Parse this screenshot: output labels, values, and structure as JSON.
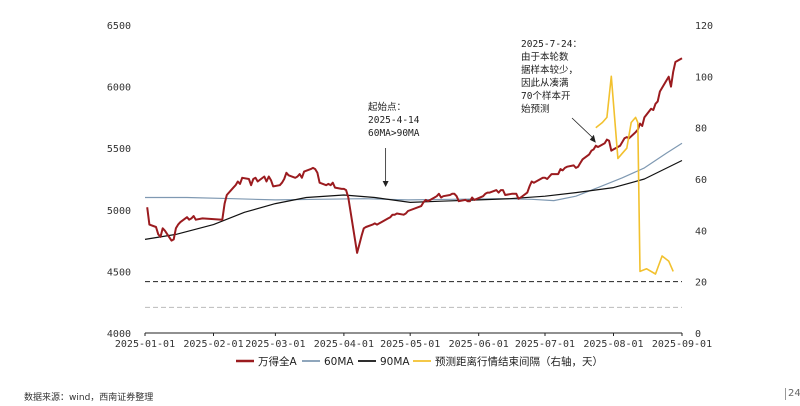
{
  "chart_data": {
    "type": "line",
    "left_axis": {
      "ylim": [
        4000,
        6500
      ],
      "ticks": [
        "4000",
        "4500",
        "5000",
        "5500",
        "6000",
        "6500"
      ]
    },
    "right_axis": {
      "ylim": [
        0,
        120
      ],
      "ticks": [
        "0",
        "20",
        "40",
        "60",
        "80",
        "100",
        "120"
      ]
    },
    "x_axis": {
      "range": [
        "2025-01-01",
        "2025-09-01"
      ],
      "ticks": [
        "2025-01-01",
        "2025-02-01",
        "2025-03-01",
        "2025-04-01",
        "2025-05-01",
        "2025-06-01",
        "2025-07-01",
        "2025-08-01",
        "2025-09-01"
      ]
    },
    "series": [
      {
        "name": "万得全A",
        "axis": "left",
        "color": "#9b1b1f",
        "points": [
          [
            "2025-01-02",
            5020
          ],
          [
            "2025-01-03",
            4880
          ],
          [
            "2025-01-06",
            4860
          ],
          [
            "2025-01-07",
            4800
          ],
          [
            "2025-01-08",
            4780
          ],
          [
            "2025-01-09",
            4850
          ],
          [
            "2025-01-10",
            4830
          ],
          [
            "2025-01-13",
            4750
          ],
          [
            "2025-01-14",
            4760
          ],
          [
            "2025-01-15",
            4850
          ],
          [
            "2025-01-16",
            4880
          ],
          [
            "2025-01-17",
            4900
          ],
          [
            "2025-01-20",
            4940
          ],
          [
            "2025-01-21",
            4920
          ],
          [
            "2025-01-22",
            4930
          ],
          [
            "2025-01-23",
            4950
          ],
          [
            "2025-01-24",
            4920
          ],
          [
            "2025-01-27",
            4930
          ],
          [
            "2025-02-05",
            4920
          ],
          [
            "2025-02-06",
            5050
          ],
          [
            "2025-02-07",
            5120
          ],
          [
            "2025-02-10",
            5180
          ],
          [
            "2025-02-11",
            5200
          ],
          [
            "2025-02-12",
            5230
          ],
          [
            "2025-02-13",
            5210
          ],
          [
            "2025-02-14",
            5260
          ],
          [
            "2025-02-17",
            5250
          ],
          [
            "2025-02-18",
            5200
          ],
          [
            "2025-02-19",
            5250
          ],
          [
            "2025-02-20",
            5260
          ],
          [
            "2025-02-21",
            5230
          ],
          [
            "2025-02-24",
            5270
          ],
          [
            "2025-02-25",
            5230
          ],
          [
            "2025-02-26",
            5270
          ],
          [
            "2025-02-27",
            5240
          ],
          [
            "2025-02-28",
            5190
          ],
          [
            "2025-03-03",
            5200
          ],
          [
            "2025-03-04",
            5220
          ],
          [
            "2025-03-05",
            5250
          ],
          [
            "2025-03-06",
            5300
          ],
          [
            "2025-03-07",
            5280
          ],
          [
            "2025-03-10",
            5260
          ],
          [
            "2025-03-11",
            5270
          ],
          [
            "2025-03-12",
            5290
          ],
          [
            "2025-03-13",
            5260
          ],
          [
            "2025-03-14",
            5310
          ],
          [
            "2025-03-17",
            5330
          ],
          [
            "2025-03-18",
            5340
          ],
          [
            "2025-03-19",
            5330
          ],
          [
            "2025-03-20",
            5300
          ],
          [
            "2025-03-21",
            5220
          ],
          [
            "2025-03-24",
            5200
          ],
          [
            "2025-03-25",
            5210
          ],
          [
            "2025-03-26",
            5200
          ],
          [
            "2025-03-27",
            5220
          ],
          [
            "2025-03-28",
            5180
          ],
          [
            "2025-03-31",
            5170
          ],
          [
            "2025-04-01",
            5170
          ],
          [
            "2025-04-02",
            5160
          ],
          [
            "2025-04-03",
            5100
          ],
          [
            "2025-04-07",
            4650
          ],
          [
            "2025-04-08",
            4720
          ],
          [
            "2025-04-09",
            4790
          ],
          [
            "2025-04-10",
            4850
          ],
          [
            "2025-04-11",
            4860
          ],
          [
            "2025-04-14",
            4880
          ],
          [
            "2025-04-15",
            4890
          ],
          [
            "2025-04-16",
            4880
          ],
          [
            "2025-04-17",
            4890
          ],
          [
            "2025-04-18",
            4900
          ],
          [
            "2025-04-21",
            4930
          ],
          [
            "2025-04-22",
            4940
          ],
          [
            "2025-04-23",
            4960
          ],
          [
            "2025-04-24",
            4960
          ],
          [
            "2025-04-25",
            4970
          ],
          [
            "2025-04-28",
            4960
          ],
          [
            "2025-04-29",
            4970
          ],
          [
            "2025-04-30",
            4990
          ],
          [
            "2025-05-06",
            5030
          ],
          [
            "2025-05-07",
            5060
          ],
          [
            "2025-05-08",
            5080
          ],
          [
            "2025-05-09",
            5070
          ],
          [
            "2025-05-12",
            5100
          ],
          [
            "2025-05-13",
            5110
          ],
          [
            "2025-05-14",
            5130
          ],
          [
            "2025-05-15",
            5100
          ],
          [
            "2025-05-16",
            5110
          ],
          [
            "2025-05-19",
            5120
          ],
          [
            "2025-05-20",
            5130
          ],
          [
            "2025-05-21",
            5130
          ],
          [
            "2025-05-22",
            5110
          ],
          [
            "2025-05-23",
            5070
          ],
          [
            "2025-05-26",
            5080
          ],
          [
            "2025-05-27",
            5070
          ],
          [
            "2025-05-28",
            5070
          ],
          [
            "2025-05-29",
            5100
          ],
          [
            "2025-05-30",
            5080
          ],
          [
            "2025-06-03",
            5110
          ],
          [
            "2025-06-04",
            5130
          ],
          [
            "2025-06-05",
            5140
          ],
          [
            "2025-06-06",
            5140
          ],
          [
            "2025-06-09",
            5160
          ],
          [
            "2025-06-10",
            5140
          ],
          [
            "2025-06-11",
            5160
          ],
          [
            "2025-06-12",
            5160
          ],
          [
            "2025-06-13",
            5120
          ],
          [
            "2025-06-16",
            5130
          ],
          [
            "2025-06-17",
            5130
          ],
          [
            "2025-06-18",
            5130
          ],
          [
            "2025-06-19",
            5090
          ],
          [
            "2025-06-20",
            5100
          ],
          [
            "2025-06-23",
            5140
          ],
          [
            "2025-06-24",
            5190
          ],
          [
            "2025-06-25",
            5230
          ],
          [
            "2025-06-26",
            5220
          ],
          [
            "2025-06-27",
            5230
          ],
          [
            "2025-06-30",
            5260
          ],
          [
            "2025-07-01",
            5260
          ],
          [
            "2025-07-02",
            5250
          ],
          [
            "2025-07-03",
            5270
          ],
          [
            "2025-07-04",
            5290
          ],
          [
            "2025-07-07",
            5290
          ],
          [
            "2025-07-08",
            5330
          ],
          [
            "2025-07-09",
            5320
          ],
          [
            "2025-07-10",
            5340
          ],
          [
            "2025-07-11",
            5350
          ],
          [
            "2025-07-14",
            5360
          ],
          [
            "2025-07-15",
            5340
          ],
          [
            "2025-07-16",
            5350
          ],
          [
            "2025-07-17",
            5380
          ],
          [
            "2025-07-18",
            5410
          ],
          [
            "2025-07-21",
            5450
          ],
          [
            "2025-07-22",
            5480
          ],
          [
            "2025-07-23",
            5490
          ],
          [
            "2025-07-24",
            5520
          ],
          [
            "2025-07-25",
            5510
          ],
          [
            "2025-07-28",
            5540
          ],
          [
            "2025-07-29",
            5570
          ],
          [
            "2025-07-30",
            5560
          ],
          [
            "2025-07-31",
            5480
          ],
          [
            "2025-08-01",
            5490
          ],
          [
            "2025-08-04",
            5520
          ],
          [
            "2025-08-05",
            5550
          ],
          [
            "2025-08-06",
            5580
          ],
          [
            "2025-08-07",
            5590
          ],
          [
            "2025-08-08",
            5580
          ],
          [
            "2025-08-11",
            5630
          ],
          [
            "2025-08-12",
            5650
          ],
          [
            "2025-08-13",
            5700
          ],
          [
            "2025-08-14",
            5680
          ],
          [
            "2025-08-15",
            5750
          ],
          [
            "2025-08-18",
            5820
          ],
          [
            "2025-08-19",
            5810
          ],
          [
            "2025-08-20",
            5860
          ],
          [
            "2025-08-21",
            5880
          ],
          [
            "2025-08-22",
            5960
          ],
          [
            "2025-08-25",
            6050
          ],
          [
            "2025-08-26",
            6080
          ],
          [
            "2025-08-27",
            6000
          ],
          [
            "2025-08-28",
            6120
          ],
          [
            "2025-08-29",
            6200
          ],
          [
            "2025-09-01",
            6230
          ]
        ]
      },
      {
        "name": "60MA",
        "axis": "left",
        "color": "#7f99b2",
        "points": [
          [
            "2025-01-01",
            5100
          ],
          [
            "2025-01-20",
            5100
          ],
          [
            "2025-02-10",
            5090
          ],
          [
            "2025-03-01",
            5080
          ],
          [
            "2025-03-20",
            5085
          ],
          [
            "2025-04-10",
            5090
          ],
          [
            "2025-04-30",
            5080
          ],
          [
            "2025-05-20",
            5085
          ],
          [
            "2025-06-10",
            5090
          ],
          [
            "2025-06-25",
            5085
          ],
          [
            "2025-07-05",
            5075
          ],
          [
            "2025-07-15",
            5110
          ],
          [
            "2025-07-25",
            5180
          ],
          [
            "2025-08-05",
            5260
          ],
          [
            "2025-08-15",
            5340
          ],
          [
            "2025-08-25",
            5460
          ],
          [
            "2025-09-01",
            5540
          ]
        ]
      },
      {
        "name": "90MA",
        "axis": "left",
        "color": "#111111",
        "points": [
          [
            "2025-01-01",
            4760
          ],
          [
            "2025-01-15",
            4800
          ],
          [
            "2025-02-01",
            4880
          ],
          [
            "2025-02-15",
            4980
          ],
          [
            "2025-03-01",
            5050
          ],
          [
            "2025-03-15",
            5100
          ],
          [
            "2025-04-01",
            5120
          ],
          [
            "2025-04-15",
            5100
          ],
          [
            "2025-05-01",
            5060
          ],
          [
            "2025-05-15",
            5070
          ],
          [
            "2025-06-01",
            5080
          ],
          [
            "2025-06-15",
            5090
          ],
          [
            "2025-07-01",
            5110
          ],
          [
            "2025-07-15",
            5140
          ],
          [
            "2025-08-01",
            5180
          ],
          [
            "2025-08-15",
            5250
          ],
          [
            "2025-09-01",
            5400
          ]
        ]
      },
      {
        "name": "预测距离行情结束间隔（右轴，天）",
        "axis": "right",
        "color": "#f2c12e",
        "points": [
          [
            "2025-07-24",
            80
          ],
          [
            "2025-07-27",
            82
          ],
          [
            "2025-07-29",
            84
          ],
          [
            "2025-07-31",
            100
          ],
          [
            "2025-08-03",
            68
          ],
          [
            "2025-08-05",
            70
          ],
          [
            "2025-08-07",
            72
          ],
          [
            "2025-08-09",
            82
          ],
          [
            "2025-08-11",
            84
          ],
          [
            "2025-08-12",
            82
          ],
          [
            "2025-08-13",
            24
          ],
          [
            "2025-08-16",
            25
          ],
          [
            "2025-08-20",
            23
          ],
          [
            "2025-08-23",
            30
          ],
          [
            "2025-08-26",
            28
          ],
          [
            "2025-08-28",
            24
          ]
        ]
      }
    ],
    "reference_lines": [
      {
        "axis": "right",
        "value": 20,
        "style": "dashed",
        "color": "#222222"
      },
      {
        "axis": "right",
        "value": 10,
        "style": "dashed",
        "color": "#bbbbbb"
      }
    ],
    "annotations": [
      {
        "lines": [
          "起始点：",
          "2025-4-14",
          "60MA>90MA"
        ]
      },
      {
        "lines": [
          "2025-7-24：",
          "由于本轮数",
          "据样本较少，",
          "因此从凑满",
          "70个样本开",
          "始预测"
        ]
      }
    ],
    "legend_position": "bottom"
  },
  "source_text": "数据来源：wind，西南证券整理",
  "page_number": "24"
}
